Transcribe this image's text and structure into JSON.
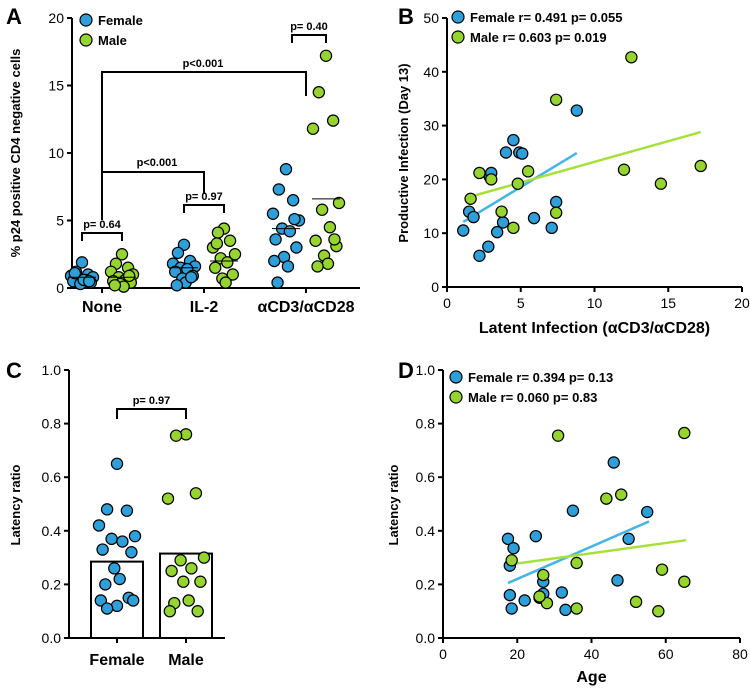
{
  "colors": {
    "female": "#2e9fd8",
    "male": "#96d42f",
    "female_line": "#45b5e6",
    "male_line": "#a8e03a"
  },
  "chart_data": [
    {
      "panel": "A",
      "type": "scatter",
      "subtype": "grouped dot plot",
      "ylabel": "% p24 positive CD4 negative cells",
      "ylim": [
        0,
        20
      ],
      "yticks": [
        0,
        5,
        10,
        15,
        20
      ],
      "categories": [
        "None",
        "IL-2",
        "αCD3/αCD28"
      ],
      "legend": [
        "Female",
        "Male"
      ],
      "series": [
        {
          "name": "Female",
          "medians": [
            0.8,
            1.5,
            4.4
          ],
          "values": [
            [
              1.9,
              1.2,
              1.0,
              0.9,
              0.8,
              0.7,
              0.6,
              0.5,
              0.4,
              0.3,
              0.6,
              1.1,
              0.5
            ],
            [
              3.2,
              2.6,
              2.0,
              1.8,
              1.6,
              1.5,
              1.4,
              1.2,
              0.9,
              0.7,
              0.4,
              0.2,
              0.8
            ],
            [
              8.8,
              7.3,
              6.5,
              5.5,
              5.0,
              4.4,
              4.2,
              3.6,
              3.0,
              2.3,
              1.6,
              0.4,
              5.1,
              2.0
            ]
          ]
        },
        {
          "name": "Male",
          "medians": [
            0.8,
            2.0,
            6.6
          ],
          "values": [
            [
              2.5,
              1.8,
              1.5,
              1.2,
              1.0,
              0.8,
              0.6,
              0.5,
              0.4,
              0.3,
              0.1,
              0.2,
              0.9
            ],
            [
              4.4,
              4.1,
              3.5,
              3.0,
              2.5,
              2.2,
              1.9,
              1.5,
              1.0,
              0.7,
              0.4,
              3.3
            ],
            [
              17.2,
              14.5,
              12.4,
              11.8,
              6.3,
              5.8,
              4.5,
              3.5,
              3.1,
              2.4,
              1.8,
              1.6,
              3.6
            ]
          ]
        }
      ],
      "annotations": [
        {
          "text": "p= 0.64",
          "from": "None Female",
          "to": "None Male"
        },
        {
          "text": "p= 0.97",
          "from": "IL-2 Female",
          "to": "IL-2 Male"
        },
        {
          "text": "p= 0.40",
          "from": "αCD3/αCD28 Female",
          "to": "αCD3/αCD28 Male"
        },
        {
          "text": "p<0.001",
          "from": "None",
          "to": "IL-2"
        },
        {
          "text": "p<0.001",
          "from": "None",
          "to": "αCD3/αCD28"
        }
      ]
    },
    {
      "panel": "B",
      "type": "scatter",
      "xlabel": "Latent Infection (αCD3/αCD28)",
      "ylabel": "Productive Infection (Day 13)",
      "xlim": [
        0,
        20
      ],
      "ylim": [
        0,
        50
      ],
      "xticks": [
        0,
        5,
        10,
        15,
        20
      ],
      "yticks": [
        0,
        10,
        20,
        30,
        40,
        50
      ],
      "series": [
        {
          "name": "Female",
          "legend": "Female r= 0.491 p= 0.055",
          "points": [
            [
              1.1,
              10.5
            ],
            [
              1.5,
              14.0
            ],
            [
              1.8,
              13.0
            ],
            [
              2.2,
              5.8
            ],
            [
              2.8,
              7.5
            ],
            [
              2.9,
              20.5
            ],
            [
              3.0,
              21.2
            ],
            [
              3.4,
              10.2
            ],
            [
              3.8,
              12.0
            ],
            [
              4.0,
              25.0
            ],
            [
              4.5,
              27.3
            ],
            [
              4.9,
              25.0
            ],
            [
              5.1,
              24.8
            ],
            [
              5.9,
              12.8
            ],
            [
              7.1,
              11.0
            ],
            [
              7.4,
              15.8
            ],
            [
              8.8,
              32.8
            ]
          ],
          "fit": [
            [
              1.1,
              12.1
            ],
            [
              8.8,
              24.9
            ]
          ]
        },
        {
          "name": "Male",
          "legend": "Male r= 0.603 p= 0.019",
          "points": [
            [
              1.6,
              16.4
            ],
            [
              2.2,
              21.2
            ],
            [
              3.0,
              20.0
            ],
            [
              3.7,
              14.0
            ],
            [
              4.5,
              11.0
            ],
            [
              4.8,
              19.2
            ],
            [
              5.5,
              21.5
            ],
            [
              7.4,
              34.8
            ],
            [
              7.4,
              13.8
            ],
            [
              12.0,
              21.8
            ],
            [
              12.5,
              42.7
            ],
            [
              14.5,
              19.2
            ],
            [
              17.2,
              22.5
            ]
          ],
          "fit": [
            [
              1.6,
              16.8
            ],
            [
              17.2,
              28.8
            ]
          ]
        }
      ]
    },
    {
      "panel": "C",
      "type": "bar",
      "ylabel": "Latency ratio",
      "ylim": [
        0,
        1.0
      ],
      "yticks": [
        0.0,
        0.2,
        0.4,
        0.6,
        0.8,
        1.0
      ],
      "categories": [
        "Female",
        "Male"
      ],
      "values": [
        0.285,
        0.315
      ],
      "points": [
        [
          0.65,
          0.48,
          0.475,
          0.42,
          0.38,
          0.37,
          0.36,
          0.33,
          0.32,
          0.26,
          0.22,
          0.2,
          0.15,
          0.14,
          0.14,
          0.12,
          0.11
        ],
        [
          0.76,
          0.755,
          0.54,
          0.52,
          0.3,
          0.29,
          0.26,
          0.25,
          0.21,
          0.21,
          0.14,
          0.13,
          0.1,
          0.1
        ]
      ],
      "annotations": [
        {
          "text": "p= 0.97",
          "from": "Female",
          "to": "Male"
        }
      ]
    },
    {
      "panel": "D",
      "type": "scatter",
      "xlabel": "Age",
      "ylabel": "Latency ratio",
      "xlim": [
        0,
        80
      ],
      "ylim": [
        0,
        1.0
      ],
      "xticks": [
        0,
        20,
        40,
        60,
        80
      ],
      "yticks": [
        0.0,
        0.2,
        0.4,
        0.6,
        0.8,
        1.0
      ],
      "series": [
        {
          "name": "Female",
          "legend": "Female r= 0.394 p= 0.13",
          "points": [
            [
              17.5,
              0.37
            ],
            [
              18,
              0.27
            ],
            [
              19,
              0.335
            ],
            [
              18,
              0.16
            ],
            [
              18.5,
              0.11
            ],
            [
              22,
              0.14
            ],
            [
              25,
              0.38
            ],
            [
              27,
              0.21
            ],
            [
              26,
              0.15
            ],
            [
              33,
              0.105
            ],
            [
              35,
              0.475
            ],
            [
              46,
              0.655
            ],
            [
              47,
              0.215
            ],
            [
              50,
              0.37
            ],
            [
              55,
              0.47
            ],
            [
              27,
              0.165
            ],
            [
              32,
              0.17
            ]
          ],
          "fit": [
            [
              17.5,
              0.205
            ],
            [
              55.5,
              0.435
            ]
          ]
        },
        {
          "name": "Male",
          "legend": "Male r= 0.060 p= 0.83",
          "points": [
            [
              18.5,
              0.29
            ],
            [
              27,
              0.235
            ],
            [
              28,
              0.13
            ],
            [
              31,
              0.755
            ],
            [
              36,
              0.28
            ],
            [
              36,
              0.11
            ],
            [
              44,
              0.52
            ],
            [
              48,
              0.535
            ],
            [
              52,
              0.135
            ],
            [
              58,
              0.1
            ],
            [
              59,
              0.255
            ],
            [
              65,
              0.765
            ],
            [
              65,
              0.21
            ],
            [
              26,
              0.155
            ]
          ],
          "fit": [
            [
              18.5,
              0.275
            ],
            [
              65.5,
              0.365
            ]
          ]
        }
      ]
    }
  ]
}
